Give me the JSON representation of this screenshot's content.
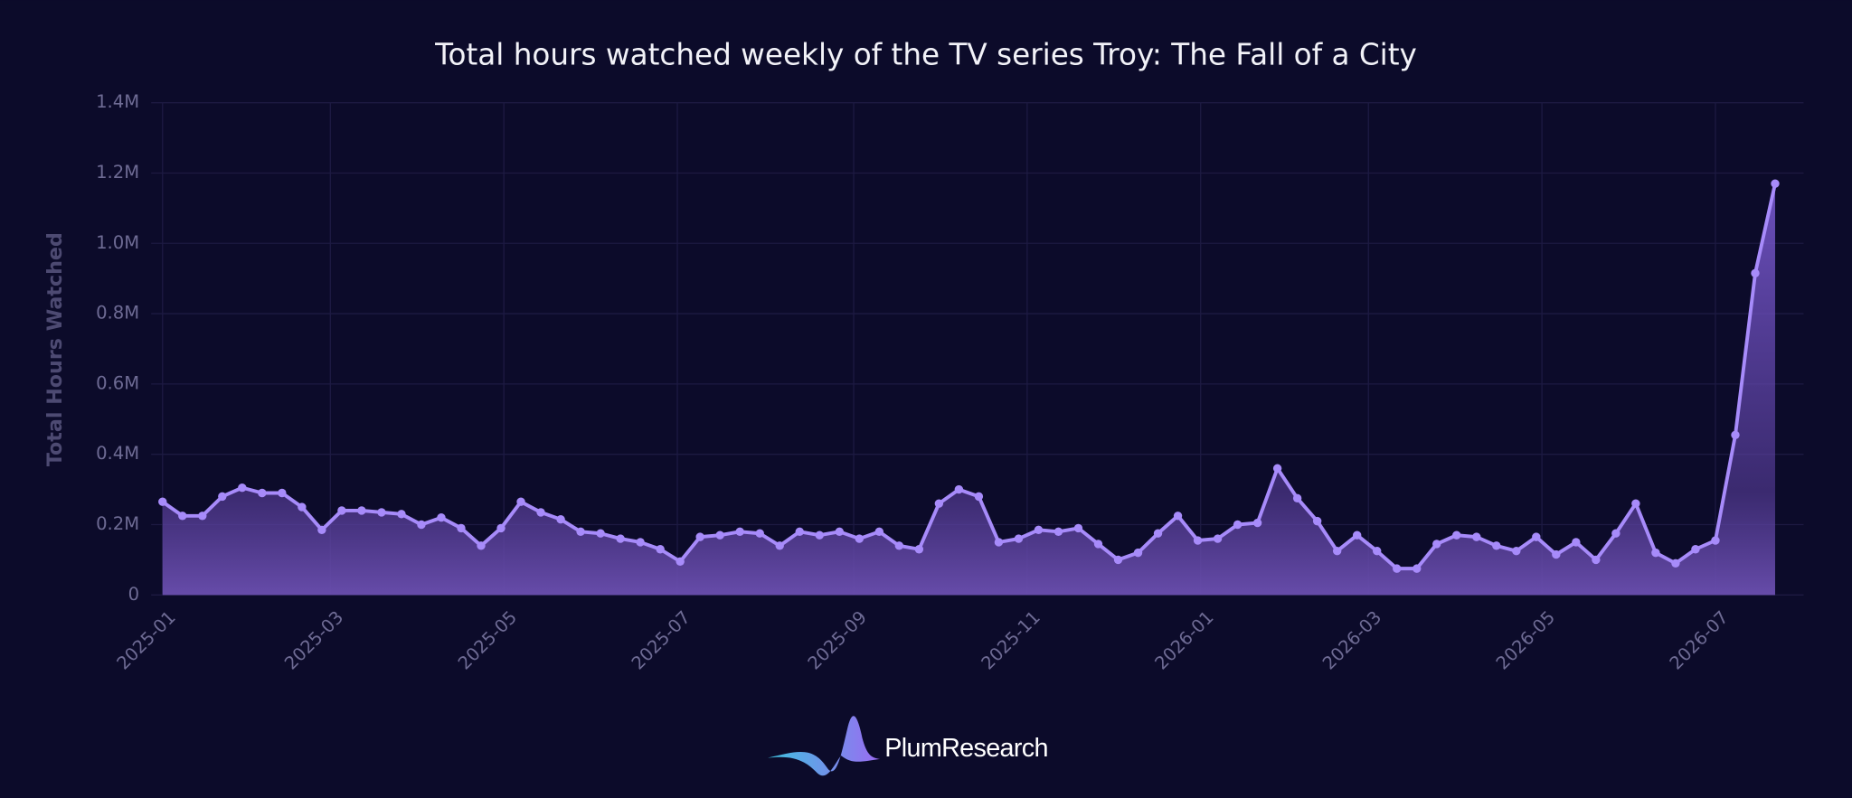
{
  "chart_data": {
    "type": "area-line",
    "title": "Total hours watched weekly of the TV series Troy: The Fall of a City",
    "y_label": "Total Hours Watched",
    "logo": "PlumResearch",
    "color": "#a78bfa",
    "grid": true,
    "x": [
      "2025-01-01",
      "2025-01-08",
      "2025-01-15",
      "2025-01-22",
      "2025-01-29",
      "2025-02-05",
      "2025-02-12",
      "2025-02-19",
      "2025-02-26",
      "2025-03-05",
      "2025-03-12",
      "2025-03-19",
      "2025-03-26",
      "2025-04-02",
      "2025-04-09",
      "2025-04-16",
      "2025-04-23",
      "2025-04-30",
      "2025-05-07",
      "2025-05-14",
      "2025-05-21",
      "2025-05-28",
      "2025-06-04",
      "2025-06-11",
      "2025-06-18",
      "2025-06-25",
      "2025-07-02",
      "2025-07-09",
      "2025-07-16",
      "2025-07-23",
      "2025-07-30",
      "2025-08-06",
      "2025-08-13",
      "2025-08-20",
      "2025-08-27",
      "2025-09-03",
      "2025-09-10",
      "2025-09-17",
      "2025-09-24",
      "2025-10-01",
      "2025-10-08",
      "2025-10-15",
      "2025-10-22",
      "2025-10-29",
      "2025-11-05",
      "2025-11-12",
      "2025-11-19",
      "2025-11-26",
      "2025-12-03",
      "2025-12-10",
      "2025-12-17",
      "2025-12-24",
      "2025-12-31",
      "2026-01-07",
      "2026-01-14",
      "2026-01-21",
      "2026-01-28",
      "2026-02-04",
      "2026-02-11",
      "2026-02-18",
      "2026-02-25",
      "2026-03-04",
      "2026-03-11",
      "2026-03-18",
      "2026-03-25",
      "2026-04-01",
      "2026-04-08",
      "2026-04-15",
      "2026-04-22",
      "2026-04-29",
      "2026-05-06",
      "2026-05-13",
      "2026-05-20",
      "2026-05-27",
      "2026-06-03",
      "2026-06-10",
      "2026-06-17",
      "2026-06-24",
      "2026-07-01",
      "2026-07-08",
      "2026-07-15",
      "2026-07-22"
    ],
    "values": [
      265000,
      225000,
      225000,
      280000,
      305000,
      290000,
      290000,
      250000,
      185000,
      240000,
      240000,
      235000,
      230000,
      200000,
      220000,
      190000,
      140000,
      190000,
      265000,
      235000,
      215000,
      180000,
      175000,
      160000,
      150000,
      130000,
      95000,
      165000,
      170000,
      180000,
      175000,
      140000,
      180000,
      170000,
      180000,
      160000,
      180000,
      140000,
      130000,
      260000,
      300000,
      280000,
      150000,
      160000,
      185000,
      180000,
      190000,
      145000,
      100000,
      120000,
      175000,
      225000,
      155000,
      160000,
      200000,
      205000,
      360000,
      275000,
      210000,
      125000,
      170000,
      125000,
      75000,
      75000,
      145000,
      170000,
      165000,
      140000,
      125000,
      165000,
      115000,
      150000,
      100000,
      175000,
      260000,
      120000,
      90000,
      130000,
      155000,
      455000,
      915000,
      1170000
    ],
    "xlim": [
      "2024-12-28",
      "2026-08-01"
    ],
    "xticks": [
      {
        "value": "2025-01-01",
        "label": "2025-01"
      },
      {
        "value": "2025-03-01",
        "label": "2025-03"
      },
      {
        "value": "2025-05-01",
        "label": "2025-05"
      },
      {
        "value": "2025-07-01",
        "label": "2025-07"
      },
      {
        "value": "2025-09-01",
        "label": "2025-09"
      },
      {
        "value": "2025-11-01",
        "label": "2025-11"
      },
      {
        "value": "2026-01-01",
        "label": "2026-01"
      },
      {
        "value": "2026-03-01",
        "label": "2026-03"
      },
      {
        "value": "2026-05-01",
        "label": "2026-05"
      },
      {
        "value": "2026-07-01",
        "label": "2026-07"
      }
    ],
    "ylim": [
      0,
      1400000
    ],
    "yticks": [
      0,
      {
        "value": 200000,
        "label": "0.2M"
      },
      {
        "value": 400000,
        "label": "0.4M"
      },
      {
        "value": 600000,
        "label": "0.6M"
      },
      {
        "value": 800000,
        "label": "0.8M"
      },
      {
        "value": 1000000,
        "label": "1.0M"
      },
      {
        "value": 1200000,
        "label": "1.2M"
      },
      {
        "value": 1400000,
        "label": "1.4M"
      }
    ]
  }
}
